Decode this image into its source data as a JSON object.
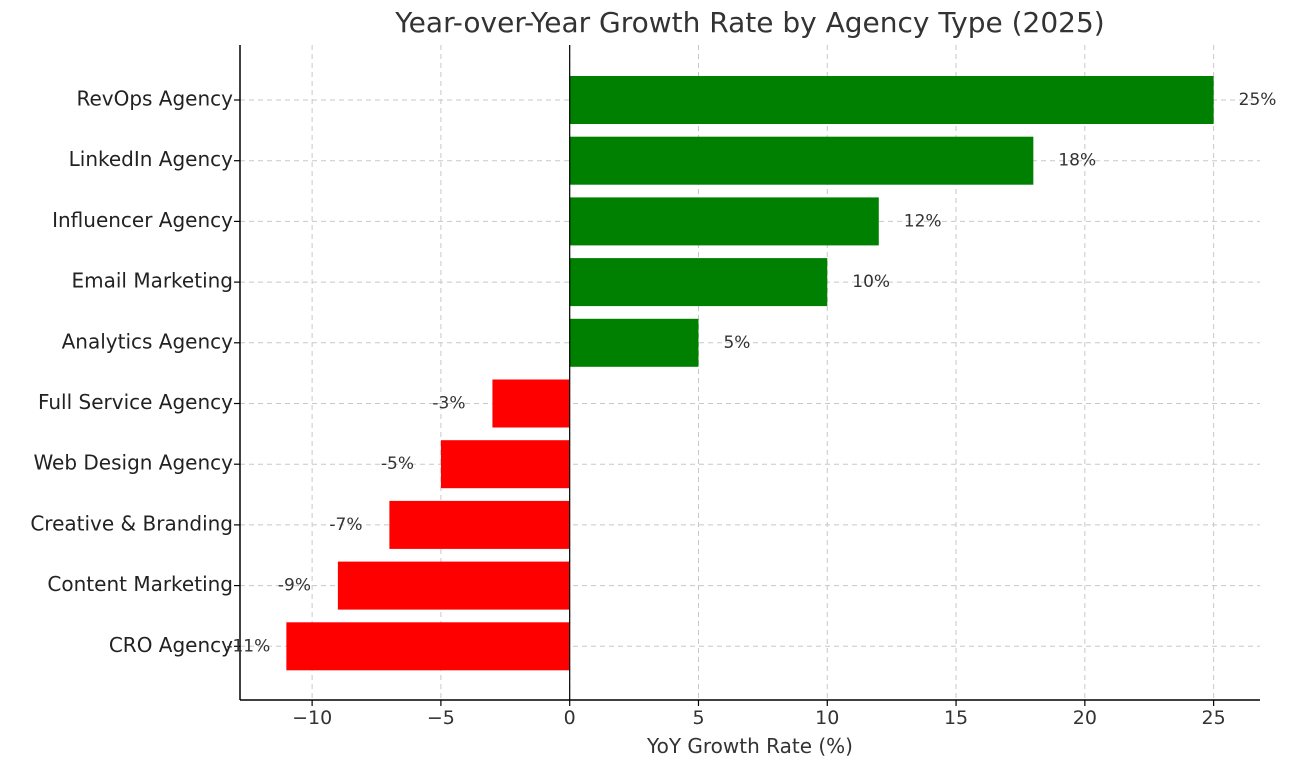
{
  "chart_data": {
    "type": "bar",
    "orientation": "horizontal",
    "title": "Year-over-Year Growth Rate by Agency Type (2025)",
    "xlabel": "YoY Growth Rate (%)",
    "ylabel": "",
    "categories": [
      "RevOps Agency",
      "LinkedIn Agency",
      "Influencer Agency",
      "Email Marketing",
      "Analytics Agency",
      "Full Service Agency",
      "Web Design Agency",
      "Creative & Branding",
      "Content Marketing",
      "CRO Agency"
    ],
    "values": [
      25,
      18,
      12,
      10,
      5,
      -3,
      -5,
      -7,
      -9,
      -11
    ],
    "data_labels": [
      "25%",
      "18%",
      "12%",
      "10%",
      "5%",
      "-3%",
      "-5%",
      "-7%",
      "-9%",
      "-11%"
    ],
    "xlim": [
      -12.8,
      26.8
    ],
    "xticks": [
      -10,
      -5,
      0,
      5,
      10,
      15,
      20,
      25
    ],
    "xtick_labels": [
      "−10",
      "−5",
      "0",
      "5",
      "10",
      "15",
      "20",
      "25"
    ],
    "grid": true,
    "colors": {
      "positive": "#008000",
      "negative": "#ff0000"
    }
  }
}
